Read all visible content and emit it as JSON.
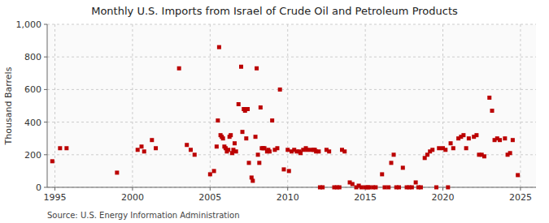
{
  "chart_data": {
    "type": "scatter",
    "title": "Monthly U.S. Imports from Israel of Crude Oil and Petroleum Products",
    "y_label": "Thousand Barrels",
    "annotations": [
      "Source: U.S. Energy Information Administration"
    ],
    "color": "#bb0000",
    "marker": "square",
    "grid": true,
    "xlim": [
      1994.5,
      2026.0
    ],
    "ylim": [
      0,
      1000
    ],
    "xticks": [
      1995,
      2000,
      2005,
      2010,
      2015,
      2020,
      2025
    ],
    "yticks": [
      0,
      200,
      400,
      600,
      800,
      {
        "value": 1000,
        "label": "1,000"
      }
    ],
    "x": [
      1994.83,
      1995.33,
      1995.75,
      1999.0,
      2000.33,
      2000.58,
      2000.75,
      2001.25,
      2001.5,
      2003.0,
      2003.5,
      2003.75,
      2004.0,
      2005.0,
      2005.25,
      2005.42,
      2005.5,
      2005.58,
      2005.67,
      2005.75,
      2005.83,
      2005.92,
      2006.0,
      2006.08,
      2006.17,
      2006.25,
      2006.33,
      2006.42,
      2006.5,
      2006.58,
      2006.67,
      2006.83,
      2007.0,
      2007.08,
      2007.17,
      2007.25,
      2007.33,
      2007.42,
      2007.5,
      2007.67,
      2007.75,
      2007.92,
      2008.0,
      2008.08,
      2008.17,
      2008.25,
      2008.33,
      2008.42,
      2008.5,
      2008.67,
      2008.75,
      2008.83,
      2009.0,
      2009.17,
      2009.33,
      2009.5,
      2009.75,
      2010.0,
      2010.08,
      2010.25,
      2010.42,
      2010.58,
      2010.75,
      2010.83,
      2011.0,
      2011.17,
      2011.25,
      2011.5,
      2011.67,
      2011.75,
      2011.83,
      2012.0,
      2012.08,
      2012.25,
      2012.5,
      2012.67,
      2013.0,
      2013.17,
      2013.33,
      2013.5,
      2013.67,
      2014.0,
      2014.17,
      2014.42,
      2014.58,
      2014.75,
      2015.0,
      2015.17,
      2015.25,
      2015.5,
      2015.67,
      2016.08,
      2016.25,
      2016.5,
      2016.67,
      2016.83,
      2017.0,
      2017.17,
      2017.42,
      2017.67,
      2017.83,
      2018.0,
      2018.25,
      2018.42,
      2018.58,
      2018.83,
      2019.0,
      2019.17,
      2019.33,
      2019.58,
      2019.75,
      2020.0,
      2020.17,
      2020.33,
      2020.5,
      2020.67,
      2021.0,
      2021.17,
      2021.33,
      2021.5,
      2021.67,
      2022.0,
      2022.17,
      2022.33,
      2022.5,
      2022.67,
      2023.0,
      2023.17,
      2023.33,
      2023.5,
      2023.67,
      2024.0,
      2024.17,
      2024.33,
      2024.5,
      2024.83
    ],
    "values": [
      160,
      240,
      240,
      90,
      230,
      250,
      220,
      290,
      240,
      730,
      260,
      230,
      200,
      80,
      100,
      250,
      410,
      860,
      320,
      310,
      300,
      250,
      240,
      220,
      230,
      310,
      320,
      210,
      230,
      270,
      220,
      510,
      740,
      340,
      480,
      470,
      300,
      480,
      150,
      60,
      40,
      310,
      730,
      200,
      150,
      490,
      240,
      240,
      240,
      220,
      230,
      220,
      410,
      230,
      240,
      600,
      110,
      230,
      100,
      220,
      230,
      220,
      220,
      210,
      230,
      240,
      230,
      230,
      230,
      230,
      220,
      220,
      0,
      0,
      230,
      220,
      0,
      0,
      0,
      230,
      220,
      30,
      20,
      0,
      10,
      0,
      0,
      0,
      0,
      0,
      0,
      80,
      0,
      0,
      150,
      200,
      0,
      0,
      120,
      0,
      0,
      0,
      30,
      0,
      0,
      180,
      200,
      220,
      230,
      0,
      240,
      240,
      230,
      0,
      270,
      240,
      300,
      310,
      320,
      240,
      300,
      310,
      320,
      200,
      200,
      190,
      550,
      470,
      290,
      300,
      290,
      300,
      200,
      210,
      290,
      75
    ]
  }
}
